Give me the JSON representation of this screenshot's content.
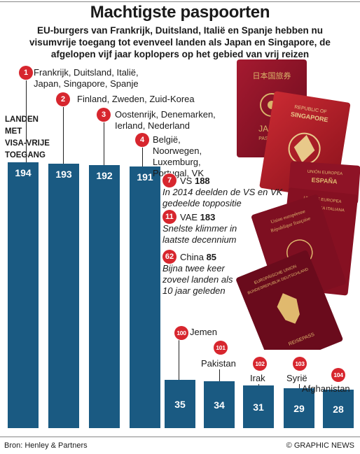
{
  "title": "Machtigste paspoorten",
  "subtitle": "EU-burgers van Frankrijk, Duitsland, Italië en Spanje hebben nu visumvrije toegang tot evenveel landen als Japan en Singapore, de afgelopen vijf jaar koplopers op het gebied van vrij reizen",
  "source": "Bron: Henley & Partners",
  "credit": "© GRAPHIC NEWS",
  "colors": {
    "bar": "#1a5a82",
    "badge": "#d7262e",
    "passport_red": "#8e1326"
  },
  "icons": [
    "japan-passport-icon",
    "singapore-passport-icon",
    "spain-passport-icon",
    "italy-passport-icon",
    "france-passport-icon",
    "germany-passport-icon"
  ],
  "passport_texts": {
    "japan": "日本国旅券",
    "japan_label": "JAPAN",
    "japan_sub": "PASSPORT",
    "singapore_top": "REPUBLIC OF",
    "singapore": "SINGAPORE",
    "spain_top": "UNIÓN EUROPEA",
    "spain": "ESPAÑA",
    "italy_top": "UNIONE EUROPEA",
    "italy": "REPUBBLICA ITALIANA",
    "france_top": "Union européenne",
    "france": "République française",
    "germany_top": "EUROPÄISCHE UNION",
    "germany": "BUNDESREPUBLIK DEUTSCHLAND",
    "germany_sub": "REISEPASS"
  },
  "chart_data": {
    "type": "bar",
    "ylabel": "LANDEN\nMET\nVISA-VRIJE\nTOEGANG",
    "top_bars": [
      {
        "value": 194,
        "rank": "1",
        "countries": "Frankrijk, Duitsland, Italië, Japan, Singapore, Spanje"
      },
      {
        "value": 193,
        "rank": "2",
        "countries": "Finland, Zweden, Zuid-Korea"
      },
      {
        "value": 192,
        "rank": "3",
        "countries": "Oostenrijk, Denemarken, Ierland, Nederland"
      },
      {
        "value": 191,
        "rank": "4",
        "countries": "België, Noorwegen, Luxemburg, Portugal, VK"
      }
    ],
    "annotations": [
      {
        "rank": "7",
        "country": "VS",
        "value": "188",
        "note": "In 2014 deelden de VS en VK gedeelde toppositie"
      },
      {
        "rank": "11",
        "country": "VAE",
        "value": "183",
        "note": "Snelste klimmer in laatste decennium"
      },
      {
        "rank": "62",
        "country": "China",
        "value": "85",
        "note": "Bijna twee keer zoveel landen als 10 jaar geleden"
      }
    ],
    "bottom_bars": [
      {
        "value": 35,
        "rank": "100",
        "country": "Jemen"
      },
      {
        "value": 34,
        "rank": "101",
        "country": "Pakistan"
      },
      {
        "value": 31,
        "rank": "102",
        "country": "Irak"
      },
      {
        "value": 29,
        "rank": "103",
        "country": "Syrië"
      },
      {
        "value": 28,
        "rank": "104",
        "country": "Afghanistan"
      }
    ]
  }
}
